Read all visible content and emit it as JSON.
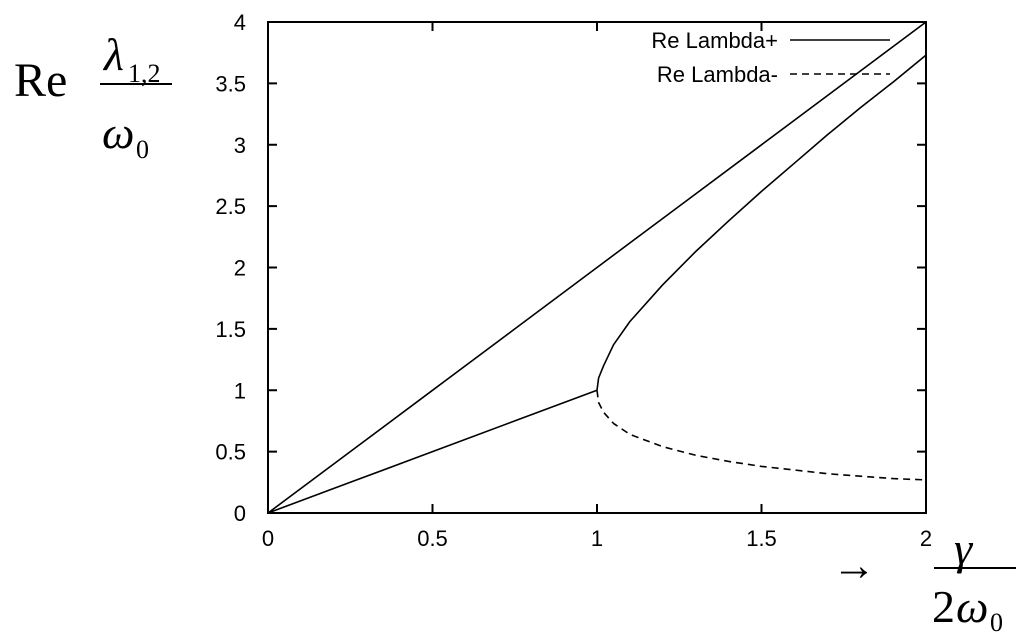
{
  "chart_data": {
    "type": "line",
    "xlim": [
      0,
      2
    ],
    "ylim": [
      0,
      4
    ],
    "x_ticks": [
      "0",
      "0.5",
      "1",
      "1.5",
      "2"
    ],
    "y_ticks": [
      "0",
      "0.5",
      "1",
      "1.5",
      "2",
      "2.5",
      "3",
      "3.5",
      "4"
    ],
    "ylabel": {
      "prefix": "Re",
      "numerator_symbol": "λ",
      "numerator_subscript": "1,2",
      "denominator_symbol": "ω",
      "denominator_subscript": "0"
    },
    "xlabel": {
      "arrow": "→",
      "numerator_symbol": "γ",
      "denominator_prefix": "2",
      "denominator_symbol": "ω",
      "denominator_subscript": "0"
    },
    "legend_position": "top-right",
    "series": [
      {
        "name": "Re Lambda+",
        "style": "solid",
        "segments": [
          {
            "x": [
              0,
              0.25,
              0.5,
              0.75,
              1.0,
              1.25,
              1.5,
              1.75,
              2.0
            ],
            "y": [
              0,
              0.5,
              1.0,
              1.5,
              2.0,
              2.5,
              3.0,
              3.5,
              4.0
            ]
          },
          {
            "x": [
              0,
              0.25,
              0.5,
              0.75,
              1.0
            ],
            "y": [
              0,
              0.25,
              0.5,
              0.75,
              1.0
            ]
          },
          {
            "x": [
              1.0,
              1.005,
              1.02,
              1.05,
              1.1,
              1.2,
              1.3,
              1.4,
              1.5,
              1.6,
              1.7,
              1.8,
              1.9,
              2.0
            ],
            "y": [
              1.0,
              1.1,
              1.2,
              1.37,
              1.56,
              1.86,
              2.13,
              2.38,
              2.62,
              2.85,
              3.08,
              3.3,
              3.51,
              3.73
            ]
          }
        ]
      },
      {
        "name": "Re Lambda-",
        "style": "dashed",
        "segments": [
          {
            "x": [
              1.0,
              1.005,
              1.02,
              1.05,
              1.1,
              1.2,
              1.3,
              1.4,
              1.5,
              1.6,
              1.7,
              1.8,
              1.9,
              2.0
            ],
            "y": [
              1.0,
              0.9,
              0.82,
              0.73,
              0.64,
              0.54,
              0.47,
              0.42,
              0.38,
              0.35,
              0.32,
              0.3,
              0.28,
              0.27
            ]
          }
        ]
      }
    ]
  }
}
